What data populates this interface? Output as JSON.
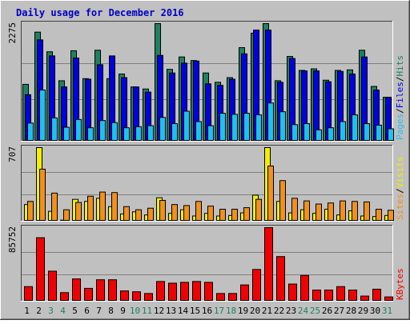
{
  "title": "Daily usage for December 2016",
  "colors": {
    "background": "#c0c0c0",
    "title": "#0000c0",
    "grid": "#808080",
    "hits": "#208060",
    "files": "#0000e0",
    "pages": "#20c0f0",
    "visits": "#f0f000",
    "sites": "#f09020",
    "kbytes": "#f00000",
    "label_dark": "#000000",
    "label_weekend": "#208060"
  },
  "panels": {
    "top": {
      "max_label": "2275",
      "legend": [
        "Pages",
        "/",
        "Files",
        "/",
        "Hits"
      ]
    },
    "middle": {
      "max_label": "707",
      "legend": [
        "Sites",
        "/",
        "Visits"
      ]
    },
    "bottom": {
      "max_label": "85752",
      "legend": [
        "KBytes"
      ]
    }
  },
  "chart_data": {
    "type": "bar",
    "title": "Daily usage for December 2016",
    "categories": [
      "1",
      "2",
      "3",
      "4",
      "5",
      "6",
      "7",
      "8",
      "9",
      "10",
      "11",
      "12",
      "13",
      "14",
      "15",
      "16",
      "17",
      "18",
      "19",
      "20",
      "21",
      "22",
      "23",
      "24",
      "25",
      "26",
      "27",
      "28",
      "29",
      "30",
      "31"
    ],
    "weekend_days": [
      "3",
      "4",
      "10",
      "11",
      "17",
      "18",
      "24",
      "25",
      "31"
    ],
    "charts": [
      {
        "panel": "top",
        "ylim": [
          0,
          2275
        ],
        "series": [
          {
            "name": "Hits",
            "values": [
              1100,
              2110,
              1730,
              1170,
              1750,
              1210,
              1760,
              1210,
              1300,
              1050,
              1010,
              2275,
              1390,
              1630,
              1560,
              1320,
              1140,
              1230,
              1810,
              2090,
              2275,
              1170,
              1640,
              1370,
              1400,
              1180,
              1370,
              1380,
              1760,
              1060,
              850
            ]
          },
          {
            "name": "Files",
            "values": [
              900,
              1960,
              1650,
              1050,
              1610,
              1200,
              1480,
              1650,
              1230,
              1050,
              950,
              1660,
              1320,
              1510,
              1550,
              1110,
              1080,
              1200,
              1690,
              2150,
              2150,
              1140,
              1600,
              1360,
              1360,
              1150,
              1350,
              1300,
              1630,
              990,
              850
            ]
          },
          {
            "name": "Pages",
            "values": [
              350,
              990,
              450,
              270,
              420,
              260,
              400,
              360,
              260,
              280,
              300,
              460,
              340,
              580,
              380,
              300,
              540,
              520,
              540,
              510,
              740,
              570,
              320,
              340,
              220,
              260,
              380,
              510,
              340,
              310,
              240
            ]
          }
        ]
      },
      {
        "panel": "middle",
        "ylim": [
          0,
          707
        ],
        "series": [
          {
            "name": "Visits",
            "values": [
              160,
              707,
              95,
              10,
              210,
              190,
              220,
              140,
              70,
              90,
              60,
              225,
              75,
              110,
              50,
              75,
              50,
              55,
              80,
              250,
              707,
              190,
              80,
              110,
              75,
              115,
              60,
              100,
              50,
              45,
              55
            ]
          },
          {
            "name": "Sites",
            "values": [
              190,
              500,
              270,
              110,
              180,
              240,
              280,
              275,
              140,
              110,
              125,
              200,
              160,
              150,
              190,
              145,
              115,
              115,
              130,
              210,
              530,
              390,
              220,
              195,
              165,
              175,
              195,
              190,
              185,
              115,
              105
            ]
          }
        ]
      },
      {
        "panel": "bottom",
        "ylim": [
          0,
          85752
        ],
        "series": [
          {
            "name": "KBytes",
            "values": [
              17000,
              74000,
              35000,
              10000,
              26000,
              15000,
              25000,
              25000,
              12000,
              11000,
              9000,
              23000,
              21000,
              22000,
              23000,
              22000,
              9000,
              9000,
              19000,
              37000,
              85752,
              52000,
              20000,
              30000,
              13000,
              13000,
              17000,
              13000,
              6000,
              14000,
              5000
            ]
          }
        ]
      }
    ]
  }
}
